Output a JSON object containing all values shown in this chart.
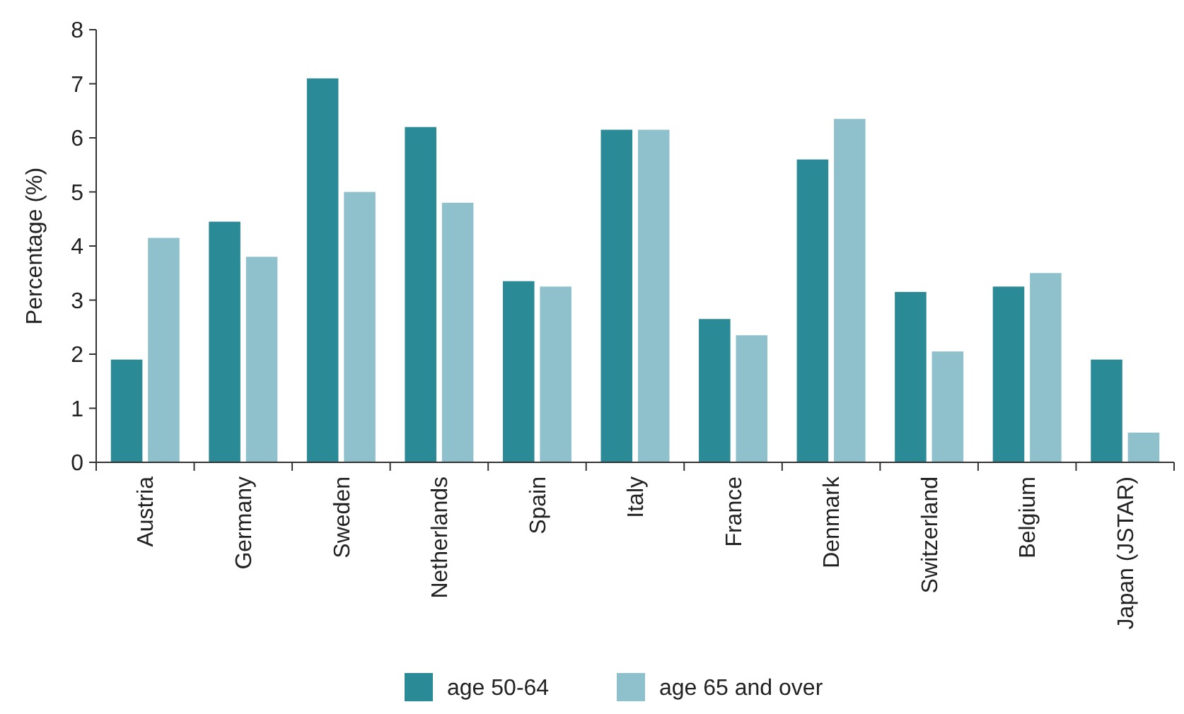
{
  "chart_data": {
    "type": "bar",
    "ylabel": "Percentage (%)",
    "categories": [
      "Austria",
      "Germany",
      "Sweden",
      "Netherlands",
      "Spain",
      "Italy",
      "France",
      "Denmark",
      "Switzerland",
      "Belgium",
      "Japan (JSTAR)"
    ],
    "series": [
      {
        "name": "age 50-64",
        "color": "#2a8a96",
        "values": [
          1.9,
          4.45,
          7.1,
          6.2,
          3.35,
          6.15,
          2.65,
          5.6,
          3.15,
          3.25,
          1.9
        ]
      },
      {
        "name": "age 65 and over",
        "color": "#8fc1cc",
        "values": [
          4.15,
          3.8,
          5.0,
          4.8,
          3.25,
          6.15,
          2.35,
          6.35,
          2.05,
          3.5,
          0.55
        ]
      }
    ],
    "ylim": [
      0,
      8
    ],
    "yticks": [
      0,
      1,
      2,
      3,
      4,
      5,
      6,
      7,
      8
    ],
    "grid": false,
    "legend": "bottom"
  }
}
